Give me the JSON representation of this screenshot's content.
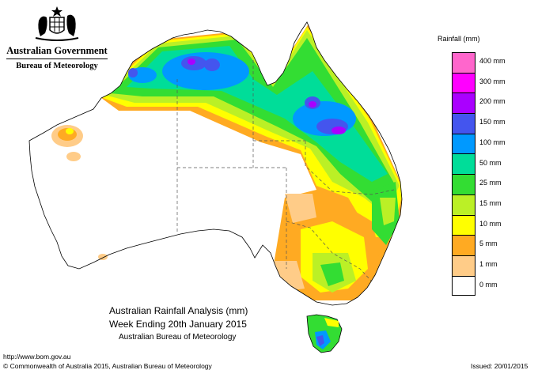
{
  "header": {
    "government": "Australian Government",
    "bureau": "Bureau of Meteorology"
  },
  "legend": {
    "title": "Rainfall (mm)",
    "items": [
      {
        "label": "400 mm",
        "color": "#ff66cc"
      },
      {
        "label": "300 mm",
        "color": "#ff00ff"
      },
      {
        "label": "200 mm",
        "color": "#aa00ff"
      },
      {
        "label": "150 mm",
        "color": "#4455ee"
      },
      {
        "label": "100 mm",
        "color": "#0099ff"
      },
      {
        "label": "50 mm",
        "color": "#00dd99"
      },
      {
        "label": "25 mm",
        "color": "#33dd33"
      },
      {
        "label": "15 mm",
        "color": "#bbf026"
      },
      {
        "label": "10 mm",
        "color": "#ffff00"
      },
      {
        "label": "5 mm",
        "color": "#ffaa22"
      },
      {
        "label": "1 mm",
        "color": "#ffcc88"
      },
      {
        "label": "0 mm",
        "color": "#ffffff"
      }
    ]
  },
  "caption": {
    "line1": "Australian Rainfall Analysis (mm)",
    "line2": "Week Ending 20th January 2015",
    "line3": "Australian Bureau of Meteorology"
  },
  "footer": {
    "url": "http://www.bom.gov.au",
    "copyright": "© Commonwealth of Australia 2015, Australian Bureau of Meteorology",
    "issued": "Issued: 20/01/2015"
  }
}
